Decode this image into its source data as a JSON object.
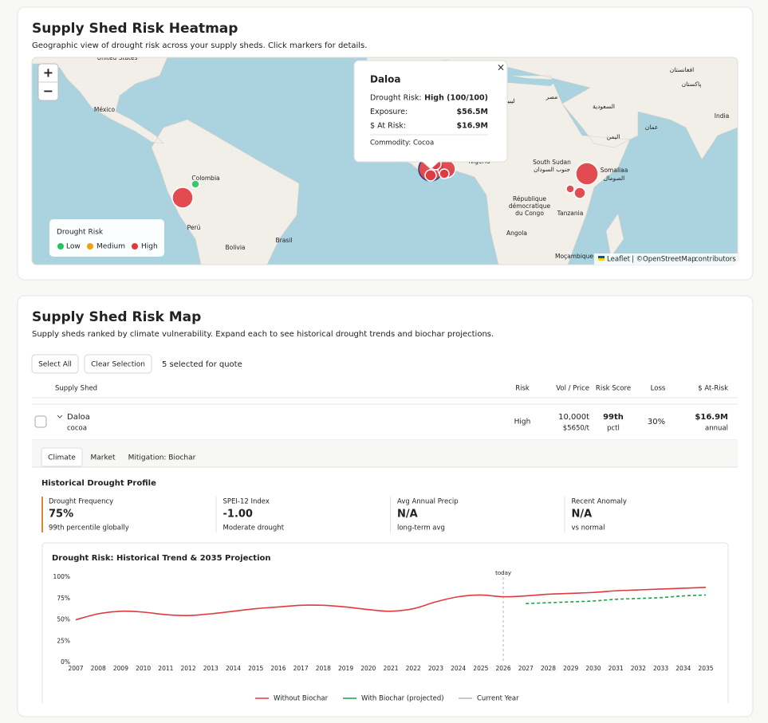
{
  "heatmap": {
    "title": "Supply Shed Risk Heatmap",
    "subtitle": "Geographic view of drought risk across your supply sheds. Click markers for details.",
    "zoom_in": "+",
    "zoom_out": "−",
    "map_labels": [
      "United States",
      "México",
      "Colombia",
      "Perú",
      "Bolivia",
      "Brasil",
      "Nigeria",
      "South Sudan",
      "جنوب السودان",
      "République",
      "démocratique",
      "du Congo",
      "Tanzania",
      "Angola",
      "Moçambique",
      "Somaliaa",
      "الصومال",
      "السعودية",
      "ليبيا",
      "مصر",
      "اليمن",
      "India",
      "پاکستان",
      "افغانستان",
      "عمان"
    ],
    "legend": {
      "title": "Drought Risk",
      "items": [
        {
          "label": "Low",
          "color": "#22c55e"
        },
        {
          "label": "Medium",
          "color": "#f59e0b"
        },
        {
          "label": "High",
          "color": "#e0393e"
        }
      ]
    },
    "attribution": {
      "leaflet": "Leaflet",
      "separator": "| ©",
      "osm": "OpenStreetMap",
      "suffix": "contributors"
    },
    "popup": {
      "close": "×",
      "title": "Daloa",
      "rows": [
        {
          "label": "Drought Risk:",
          "value": "High (100/100)",
          "color": "#d0343a"
        },
        {
          "label": "Exposure:",
          "value": "$56.5M",
          "color": "#222222"
        },
        {
          "label": "$ At Risk:",
          "value": "$16.9M",
          "color": "#d0343a"
        }
      ],
      "commodity": "Commodity: Cocoa"
    }
  },
  "risk_map": {
    "title": "Supply Shed Risk Map",
    "subtitle": "Supply sheds ranked by climate vulnerability. Expand each to see historical drought trends and biochar projections.",
    "buttons": [
      "Select All",
      "Clear Selection"
    ],
    "selection_status": "5 selected for quote",
    "table": {
      "headers": [
        "Supply Shed",
        "Risk",
        "Vol / Price",
        "Risk Score",
        "Loss",
        "$ At-Risk"
      ],
      "rows": [
        {
          "name": "Daloa",
          "commodity": "cocoa",
          "risk": "High",
          "volume": "10,000t",
          "price": "$5650/t",
          "risk_score": "99th",
          "risk_score_unit": "pctl",
          "loss": "30%",
          "at_risk": "$16.9M",
          "at_risk_period": "annual"
        }
      ]
    },
    "tabs": [
      "Climate",
      "Market",
      "Mitigation: Biochar"
    ],
    "section_title": "Historical Drought Profile",
    "stats": [
      {
        "label": "Drought Frequency",
        "value": "75%",
        "note": "99th percentile globally",
        "color": "#e0862c"
      },
      {
        "label": "SPEI-12 Index",
        "value": "-1.00",
        "note": "Moderate drought",
        "color": "#d0343a"
      },
      {
        "label": "Avg Annual Precip",
        "value": "N/A",
        "note": "long-term avg",
        "color": "#222222"
      },
      {
        "label": "Recent Anomaly",
        "value": "N/A",
        "note": "vs normal",
        "color": "#222222"
      }
    ]
  },
  "chart_data": {
    "type": "line",
    "title": "Drought Risk: Historical Trend & 2035 Projection",
    "x": [
      2007,
      2008,
      2009,
      2010,
      2011,
      2012,
      2013,
      2014,
      2015,
      2016,
      2017,
      2018,
      2019,
      2020,
      2021,
      2022,
      2023,
      2024,
      2025,
      2026,
      2027,
      2028,
      2029,
      2030,
      2031,
      2032,
      2033,
      2034,
      2035
    ],
    "xlim": [
      2007,
      2035
    ],
    "xticks": [
      2007,
      2008,
      2009,
      2010,
      2011,
      2012,
      2013,
      2014,
      2015,
      2016,
      2017,
      2018,
      2019,
      2020,
      2021,
      2022,
      2023,
      2024,
      2025,
      2026,
      2027,
      2028,
      2029,
      2030,
      2031,
      2032,
      2033,
      2034,
      2035
    ],
    "ylim": [
      0,
      100
    ],
    "yticks": [
      {
        "value": 0,
        "label": "0%"
      },
      {
        "value": 25,
        "label": "25%"
      },
      {
        "value": 50,
        "label": "50%"
      },
      {
        "value": 75,
        "label": "75%"
      },
      {
        "value": 100,
        "label": "100%"
      }
    ],
    "grid": false,
    "series": [
      {
        "name": "Without Biochar",
        "color": "#e0393e",
        "dashed": false,
        "values": [
          50,
          57,
          60,
          59,
          56,
          55,
          57,
          60,
          63,
          65,
          67,
          67,
          65,
          62,
          60,
          63,
          71,
          77,
          79,
          77,
          78,
          80,
          81,
          82,
          84,
          85,
          86,
          87,
          88
        ]
      },
      {
        "name": "With Biochar (projected)",
        "color": "#16a34a",
        "dashed": true,
        "values": [
          null,
          null,
          null,
          null,
          null,
          null,
          null,
          null,
          null,
          null,
          null,
          null,
          null,
          null,
          null,
          null,
          null,
          null,
          null,
          null,
          69,
          70,
          71,
          72,
          74,
          75,
          76,
          78,
          79
        ]
      }
    ],
    "annotation": {
      "x": 2026,
      "label": "today",
      "name": "Current Year",
      "color": "#b5b5b5"
    }
  }
}
